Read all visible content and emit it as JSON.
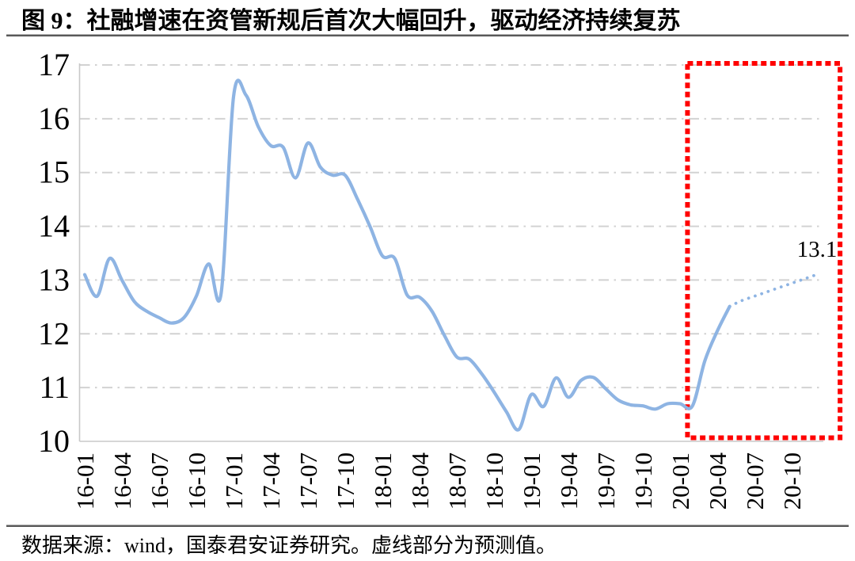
{
  "title": "图 9：社融增速在资管新规后首次大幅回升，驱动经济持续复苏",
  "source_note": "数据来源：wind，国泰君安证券研究。虚线部分为预测值。",
  "annotation": {
    "final_value_label": "13.1"
  },
  "colors": {
    "line": "#8EB4E3",
    "forecast_dots": "#8EB4E3",
    "gridline": "#D2D2D2",
    "axis": "#C8C8C8",
    "highlight_box": "#FF0000",
    "separator": "#595959",
    "text": "#000000"
  },
  "chart_data": {
    "type": "line",
    "x_start": "2016-01",
    "x_end": "2020-12",
    "x_tick_labels": [
      "16-01",
      "16-04",
      "16-07",
      "16-10",
      "17-01",
      "17-04",
      "17-07",
      "17-10",
      "18-01",
      "18-04",
      "18-07",
      "18-10",
      "19-01",
      "19-04",
      "19-07",
      "19-10",
      "20-01",
      "20-04",
      "20-07",
      "20-10"
    ],
    "x_tick_step_months": 3,
    "values": [
      13.1,
      12.7,
      13.4,
      13.0,
      12.6,
      12.42,
      12.3,
      12.2,
      12.3,
      12.7,
      13.3,
      12.75,
      16.41,
      16.44,
      15.85,
      15.5,
      15.47,
      14.9,
      15.55,
      15.1,
      14.95,
      14.95,
      14.5,
      14.0,
      13.45,
      13.4,
      12.72,
      12.68,
      12.42,
      11.97,
      11.57,
      11.53,
      11.26,
      10.92,
      10.55,
      10.22,
      10.87,
      10.65,
      11.18,
      10.82,
      11.13,
      11.19,
      10.98,
      10.77,
      10.68,
      10.66,
      10.6,
      10.7,
      10.7,
      10.66,
      11.5,
      12.05,
      12.51,
      12.62,
      12.7,
      12.78,
      12.86,
      12.94,
      13.02,
      13.1
    ],
    "forecast_start_index": 52,
    "forecast_style": "dotted",
    "ylim": [
      10,
      17
    ],
    "y_ticks": [
      10,
      11,
      12,
      13,
      14,
      15,
      16,
      17
    ],
    "grid": "dash-dot-horizontal",
    "highlight_region": {
      "from_month_index": 48.6,
      "to_month_index": 60.9,
      "style": "red-dashed-box"
    }
  }
}
